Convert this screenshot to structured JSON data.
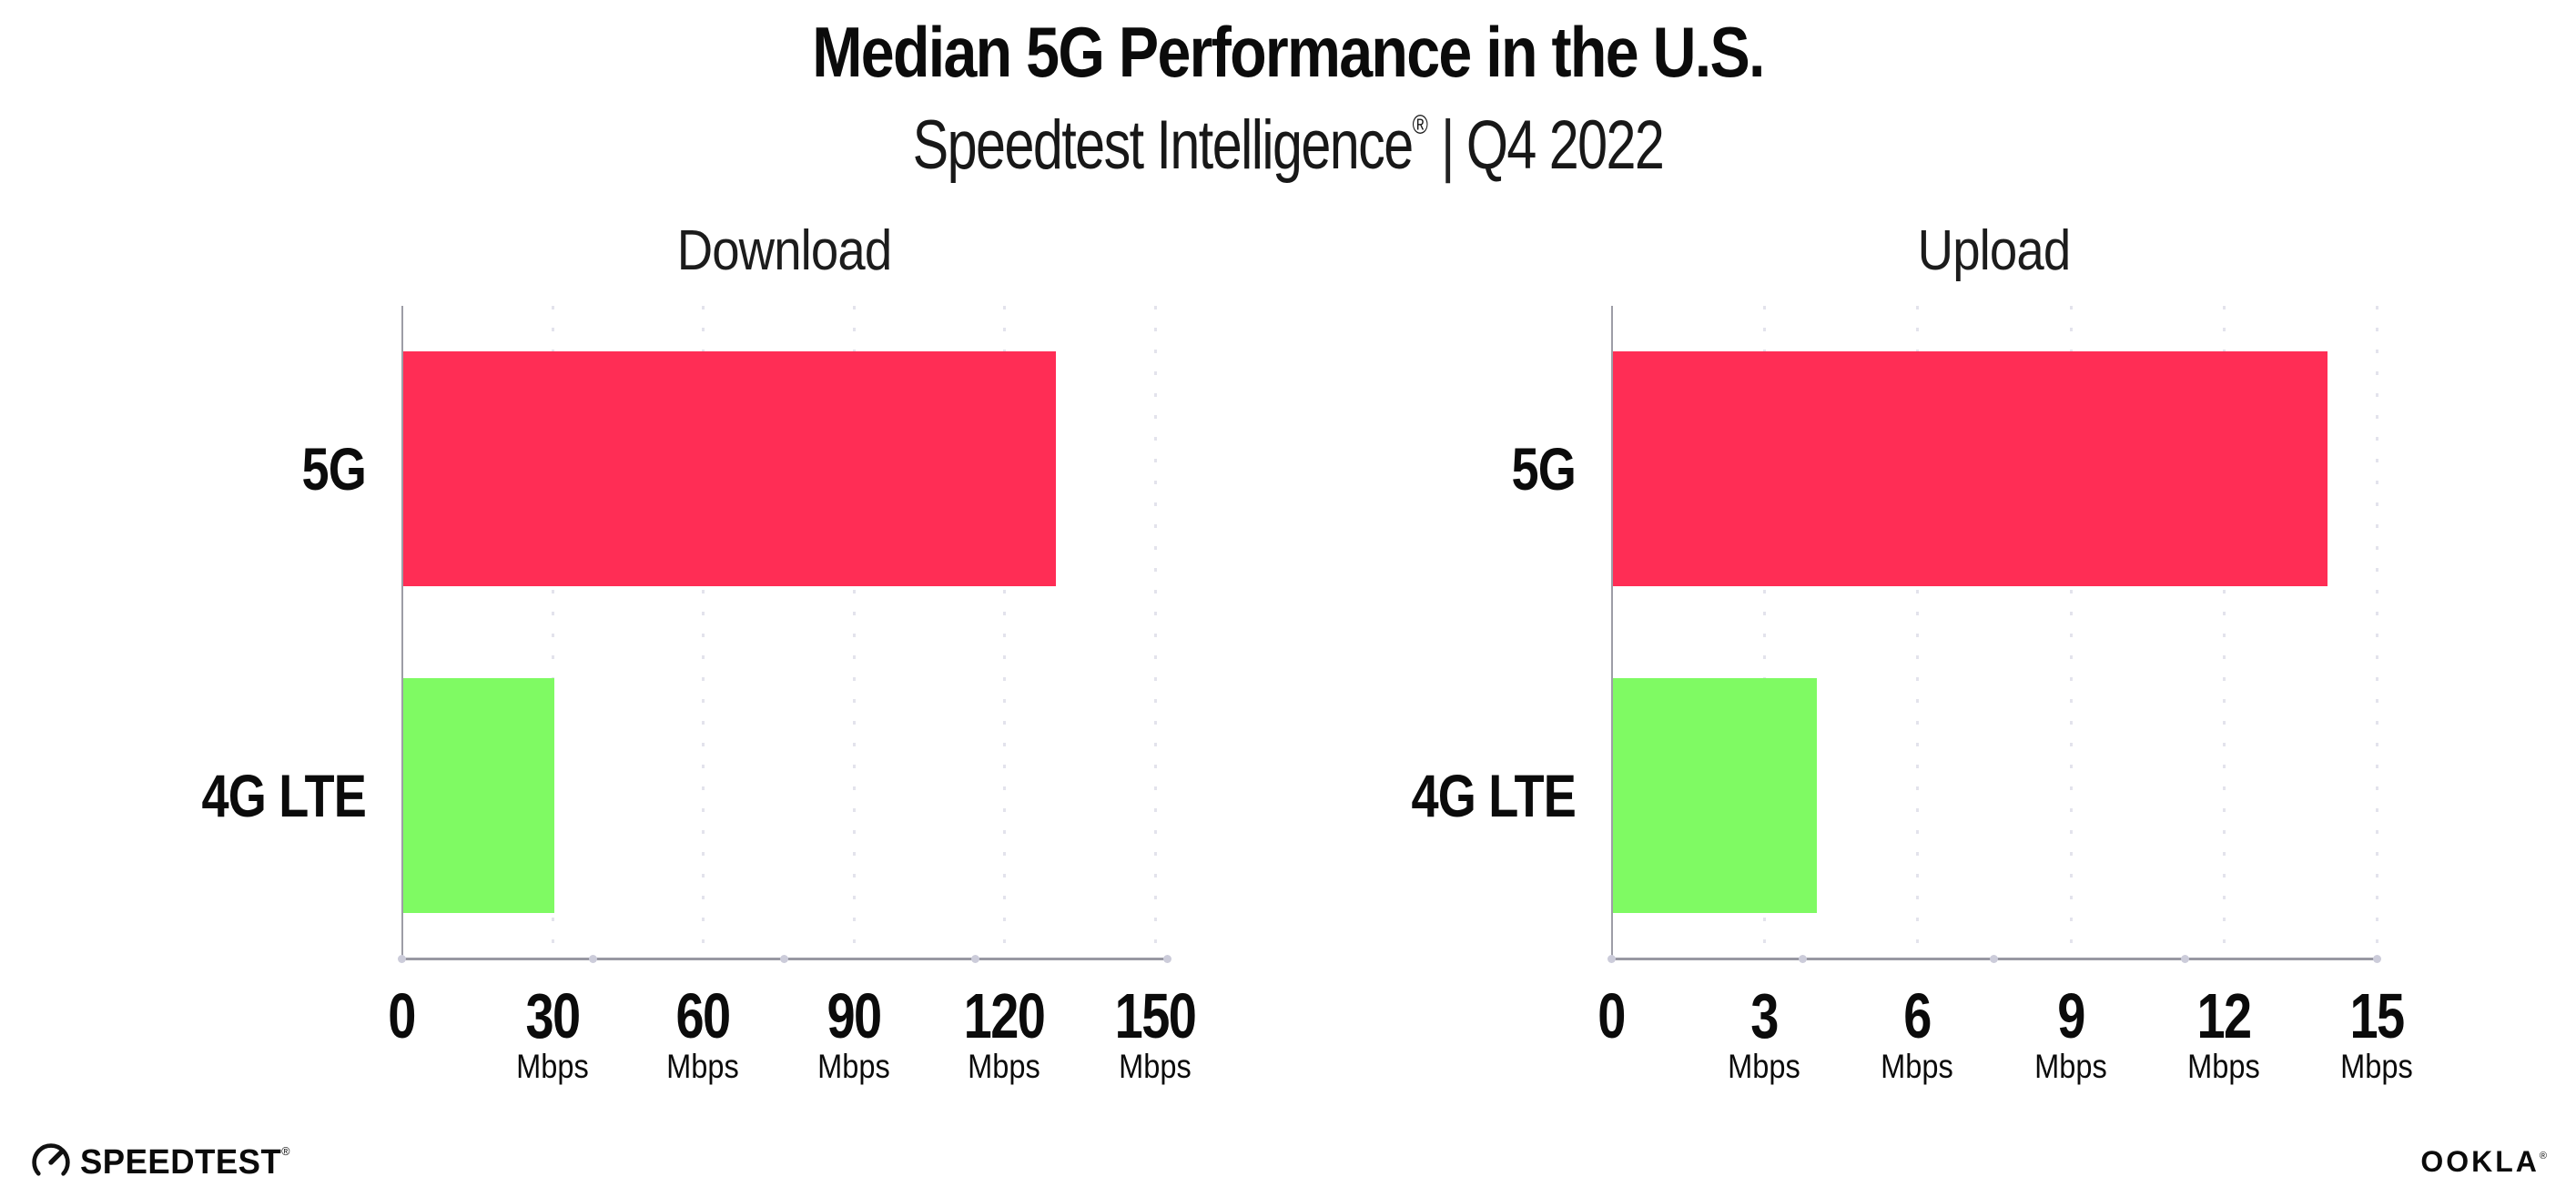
{
  "header": {
    "title": "Median 5G Performance in the U.S.",
    "subtitle": {
      "brand": "Speedtest Intelligence",
      "registered_mark": "®",
      "separator": "|",
      "period": "Q4 2022"
    }
  },
  "chart_data": [
    {
      "type": "bar",
      "orientation": "horizontal",
      "title": "Download",
      "categories": [
        "5G",
        "4G LTE"
      ],
      "values": [
        130,
        30
      ],
      "unit": "Mbps",
      "xlim": [
        0,
        150
      ],
      "xticks": [
        0,
        30,
        60,
        90,
        120,
        150
      ],
      "tick_unit_suffix": "Mbps",
      "grid": "dotted-vertical-at-ticks",
      "legend": "none",
      "bar_colors": [
        "#FF2D55",
        "#7FFA63"
      ]
    },
    {
      "type": "bar",
      "orientation": "horizontal",
      "title": "Upload",
      "categories": [
        "5G",
        "4G LTE"
      ],
      "values": [
        14,
        4
      ],
      "unit": "Mbps",
      "xlim": [
        0,
        15
      ],
      "xticks": [
        0,
        3,
        6,
        9,
        12,
        15
      ],
      "tick_unit_suffix": "Mbps",
      "grid": "dotted-vertical-at-ticks",
      "legend": "none",
      "bar_colors": [
        "#FF2D55",
        "#7FFA63"
      ]
    }
  ],
  "colors": {
    "bar_5g": "#FF2D55",
    "bar_4g_lte": "#7FFA63",
    "axis_line": "#9d9da6",
    "gridline": "#e3e3ec",
    "axis_dot": "#ccccda",
    "text": "#0b0b0b",
    "background": "#ffffff"
  },
  "footer": {
    "speedtest_wordmark": "SPEEDTEST",
    "speedtest_trademark": "®",
    "ookla_wordmark": "OOKLA",
    "ookla_trademark": "®"
  }
}
